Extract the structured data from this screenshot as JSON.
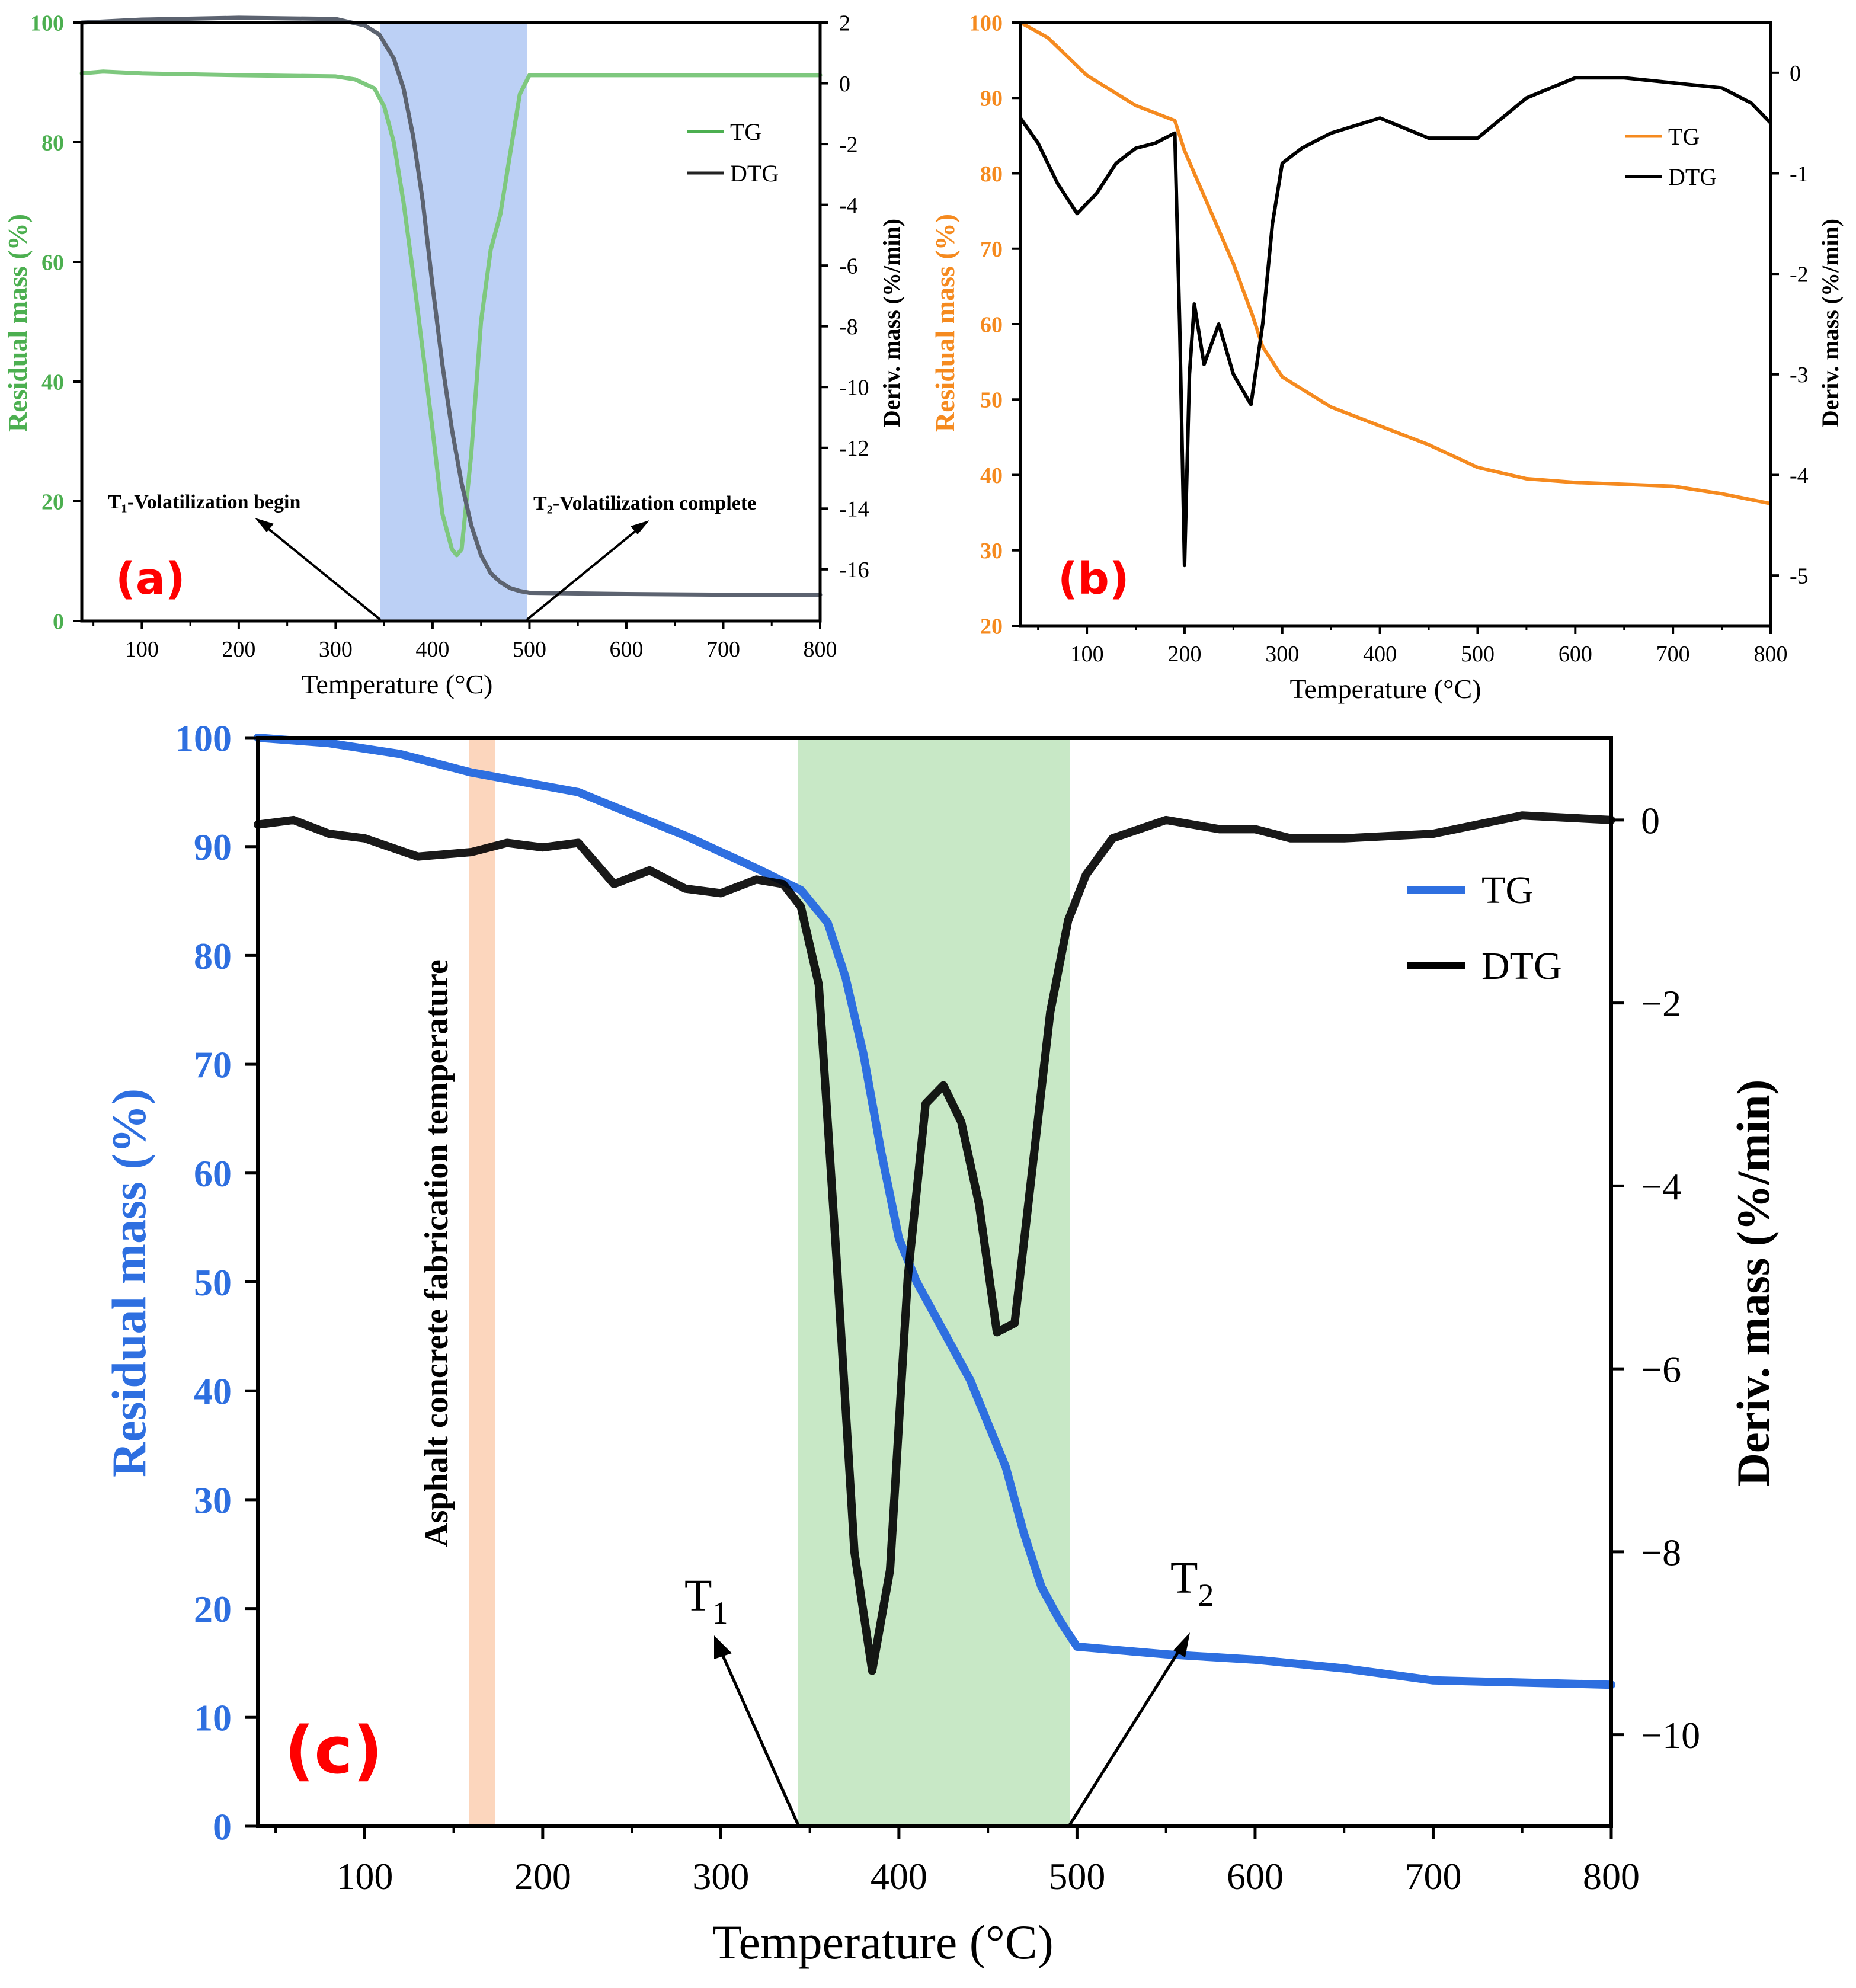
{
  "figure": {
    "xlabel": "Temperature (°C)",
    "colors": {
      "axis": "#000000",
      "label_red": "#ff0000"
    }
  },
  "chart_data": [
    {
      "panel": "(a)",
      "type": "line",
      "xlim": [
        38,
        800
      ],
      "ylim_left": [
        0,
        100
      ],
      "ylim_right": [
        -17.7,
        2
      ],
      "x_ticks": [
        100,
        200,
        300,
        400,
        500,
        600,
        700,
        800
      ],
      "y_left_ticks": [
        0,
        20,
        40,
        60,
        80,
        100
      ],
      "y_right_ticks": [
        -16,
        -14,
        -12,
        -10,
        -8,
        -6,
        -4,
        -2,
        0,
        2
      ],
      "xlabel": "Temperature (°C)",
      "ylabel_left": "Residual mass (%)",
      "ylabel_right": "Deriv. mass (%/min)",
      "shaded_region": {
        "x": [
          344,
          497
        ],
        "color": "#bcd0f5"
      },
      "annotations": [
        {
          "text": "T₁-Volatilization begin",
          "target_x": 344
        },
        {
          "text": "T₂-Volatilization complete",
          "target_x": 497
        }
      ],
      "legend": {
        "position": "top-right",
        "entries": [
          "TG",
          "DTG"
        ]
      },
      "series": [
        {
          "name": "TG",
          "axis": "left",
          "color": "#7ec87e",
          "x": [
            38,
            60,
            100,
            200,
            300,
            320,
            340,
            350,
            360,
            370,
            380,
            390,
            400,
            410,
            420,
            425,
            430,
            440,
            450,
            460,
            470,
            480,
            490,
            500,
            600,
            700,
            800
          ],
          "y": [
            91.5,
            91.8,
            91.5,
            91.2,
            91,
            90.5,
            89,
            86,
            80,
            70,
            58,
            45,
            32,
            18,
            12,
            11,
            12,
            28,
            50,
            62,
            68,
            78,
            88,
            91.2,
            91.2,
            91.2,
            91.2
          ]
        },
        {
          "name": "DTG",
          "axis": "left",
          "color": "#5c6370",
          "x": [
            38,
            100,
            200,
            300,
            330,
            345,
            360,
            370,
            380,
            390,
            400,
            410,
            420,
            430,
            440,
            450,
            460,
            470,
            480,
            490,
            500,
            600,
            700,
            800
          ],
          "y": [
            100,
            100.5,
            100.8,
            100.6,
            99.5,
            98,
            94,
            89,
            81,
            70,
            56,
            43,
            32,
            23,
            16,
            11,
            8,
            6.5,
            5.5,
            5,
            4.7,
            4.5,
            4.4,
            4.4
          ]
        }
      ]
    },
    {
      "panel": "(b)",
      "type": "line",
      "xlim": [
        32,
        800
      ],
      "ylim_left": [
        20,
        100
      ],
      "ylim_right": [
        -5.5,
        0.5
      ],
      "x_ticks": [
        100,
        200,
        300,
        400,
        500,
        600,
        700,
        800
      ],
      "y_left_ticks": [
        20,
        30,
        40,
        50,
        60,
        70,
        80,
        90,
        100
      ],
      "y_right_ticks": [
        -5,
        -4,
        -3,
        -2,
        -1,
        0
      ],
      "xlabel": "Temperature (°C)",
      "ylabel_left": "Residual mass (%)",
      "ylabel_right": "Deriv. mass (%/min)",
      "legend": {
        "position": "top-right",
        "entries": [
          "TG",
          "DTG"
        ]
      },
      "series": [
        {
          "name": "TG",
          "axis": "left",
          "color": "#f58a1f",
          "x": [
            32,
            60,
            100,
            150,
            190,
            200,
            220,
            250,
            270,
            280,
            300,
            350,
            400,
            450,
            500,
            550,
            600,
            700,
            750,
            800
          ],
          "y": [
            100,
            98,
            93,
            89,
            87,
            83,
            77,
            68,
            61,
            57,
            53,
            49,
            46.5,
            44,
            41,
            39.5,
            39,
            38.5,
            37.5,
            36.2
          ]
        },
        {
          "name": "DTG",
          "axis": "right",
          "color": "#000000",
          "x": [
            32,
            50,
            70,
            90,
            110,
            130,
            150,
            170,
            190,
            195,
            200,
            205,
            210,
            220,
            235,
            250,
            268,
            280,
            290,
            300,
            320,
            350,
            400,
            450,
            500,
            550,
            600,
            650,
            700,
            750,
            780,
            800
          ],
          "y": [
            -0.45,
            -0.7,
            -1.1,
            -1.4,
            -1.2,
            -0.9,
            -0.75,
            -0.7,
            -0.6,
            -2.5,
            -4.9,
            -3,
            -2.3,
            -2.9,
            -2.5,
            -3,
            -3.3,
            -2.5,
            -1.5,
            -0.9,
            -0.75,
            -0.6,
            -0.45,
            -0.65,
            -0.65,
            -0.25,
            -0.05,
            -0.05,
            -0.1,
            -0.15,
            -0.3,
            -0.5
          ]
        }
      ]
    },
    {
      "panel": "(c)",
      "type": "line",
      "xlim": [
        40,
        800
      ],
      "ylim_left": [
        0,
        100
      ],
      "ylim_right": [
        -11,
        0.9
      ],
      "x_ticks": [
        100,
        200,
        300,
        400,
        500,
        600,
        700,
        800
      ],
      "y_left_ticks": [
        0,
        10,
        20,
        30,
        40,
        50,
        60,
        70,
        80,
        90,
        100
      ],
      "y_right_ticks": [
        -10,
        -8,
        -6,
        -4,
        -2,
        0
      ],
      "y_right_tick_labels": [
        "−10",
        "−8",
        "−6",
        "−4",
        "−2",
        "0"
      ],
      "xlabel": "Temperature (°C)",
      "ylabel_left": "Residual mass (%)",
      "ylabel_right": "Deriv. mass (%/min)",
      "shaded_regions": [
        {
          "x": [
            160,
            180
          ],
          "color": "#fcd6bd",
          "label": "Asphalt concrete fabrication temperature"
        },
        {
          "x": [
            344,
            497
          ],
          "color": "#c8e8c6"
        }
      ],
      "annotations": [
        {
          "text": "T",
          "sub": "1",
          "target_x": 344
        },
        {
          "text": "T",
          "sub": "2",
          "target_x": 497
        }
      ],
      "legend": {
        "position": "top-right",
        "entries": [
          "TG",
          "DTG"
        ]
      },
      "series": [
        {
          "name": "TG",
          "axis": "left",
          "color": "#2e6fe0",
          "x": [
            40,
            80,
            120,
            160,
            220,
            280,
            320,
            345,
            360,
            370,
            380,
            390,
            400,
            410,
            420,
            440,
            460,
            470,
            480,
            490,
            500,
            550,
            600,
            650,
            700,
            750,
            800
          ],
          "y": [
            100,
            99.5,
            98.5,
            96.8,
            95,
            91,
            88,
            86,
            83,
            78,
            71,
            62,
            54,
            50,
            47,
            41,
            33,
            27,
            22,
            19,
            16.5,
            15.8,
            15.3,
            14.5,
            13.4,
            13.2,
            13
          ]
        },
        {
          "name": "DTG",
          "axis": "right",
          "color": "#000000",
          "x": [
            40,
            60,
            80,
            100,
            130,
            160,
            180,
            200,
            220,
            240,
            260,
            280,
            300,
            320,
            335,
            345,
            355,
            365,
            375,
            385,
            395,
            405,
            415,
            425,
            435,
            445,
            455,
            465,
            475,
            485,
            495,
            505,
            520,
            550,
            580,
            600,
            620,
            650,
            700,
            750,
            800
          ],
          "y": [
            -0.05,
            0.0,
            -0.15,
            -0.2,
            -0.4,
            -0.35,
            -0.25,
            -0.3,
            -0.25,
            -0.7,
            -0.55,
            -0.75,
            -0.8,
            -0.65,
            -0.7,
            -0.95,
            -1.8,
            -4.8,
            -8,
            -9.3,
            -8.2,
            -5,
            -3.1,
            -2.9,
            -3.3,
            -4.2,
            -5.6,
            -5.5,
            -3.8,
            -2.1,
            -1.1,
            -0.6,
            -0.2,
            0.0,
            -0.1,
            -0.1,
            -0.2,
            -0.2,
            -0.15,
            0.05,
            0.0
          ]
        }
      ]
    }
  ]
}
